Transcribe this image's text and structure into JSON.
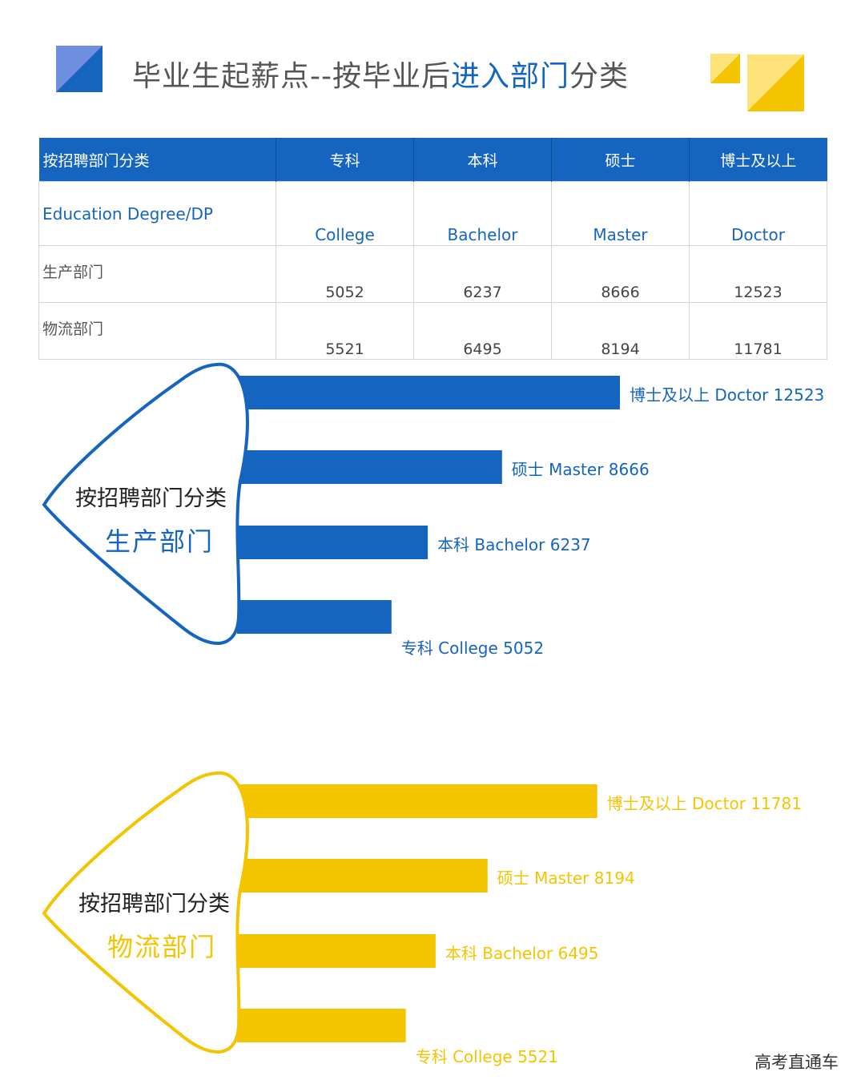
{
  "header": {
    "title_main": "毕业生起薪点--按毕业后",
    "title_accent": "进入部门",
    "title_end": "分类",
    "colors": {
      "blue": "#1565c0",
      "blue_light": "#6e8fe0",
      "yellow": "#f5c400",
      "yellow_light": "#fde27a"
    }
  },
  "table": {
    "columns": [
      "按招聘部门分类",
      "专科",
      "本科",
      "硕士",
      "博士及以上"
    ],
    "english_row": [
      "Education  Degree/DP",
      "College",
      "Bachelor",
      "Master",
      "Doctor"
    ],
    "rows": [
      {
        "label": "生产部门",
        "values": [
          "5052",
          "6237",
          "8666",
          "12523"
        ]
      },
      {
        "label": "物流部门",
        "values": [
          "5521",
          "6495",
          "8194",
          "11781"
        ]
      }
    ]
  },
  "chart_data": [
    {
      "type": "bar",
      "orientation": "horizontal",
      "title": "按招聘部门分类",
      "subtitle": "生产部门",
      "color": "#1565c0",
      "categories": [
        "博士及以上 Doctor",
        "硕士 Master",
        "本科 Bachelor",
        "专科 College"
      ],
      "labels": [
        "博士及以上 Doctor 12523",
        "硕士 Master 8666",
        "本科 Bachelor 6237",
        "专科 College 5052"
      ],
      "values": [
        12523,
        8666,
        6237,
        5052
      ]
    },
    {
      "type": "bar",
      "orientation": "horizontal",
      "title": "按招聘部门分类",
      "subtitle": "物流部门",
      "color": "#f5c400",
      "categories": [
        "博士及以上 Doctor",
        "硕士 Master",
        "本科 Bachelor",
        "专科 College"
      ],
      "labels": [
        "博士及以上 Doctor 11781",
        "硕士 Master 8194",
        "本科 Bachelor 6495",
        "专科 College 5521"
      ],
      "values": [
        11781,
        8194,
        6495,
        5521
      ]
    }
  ],
  "watermark": "高考直通车"
}
